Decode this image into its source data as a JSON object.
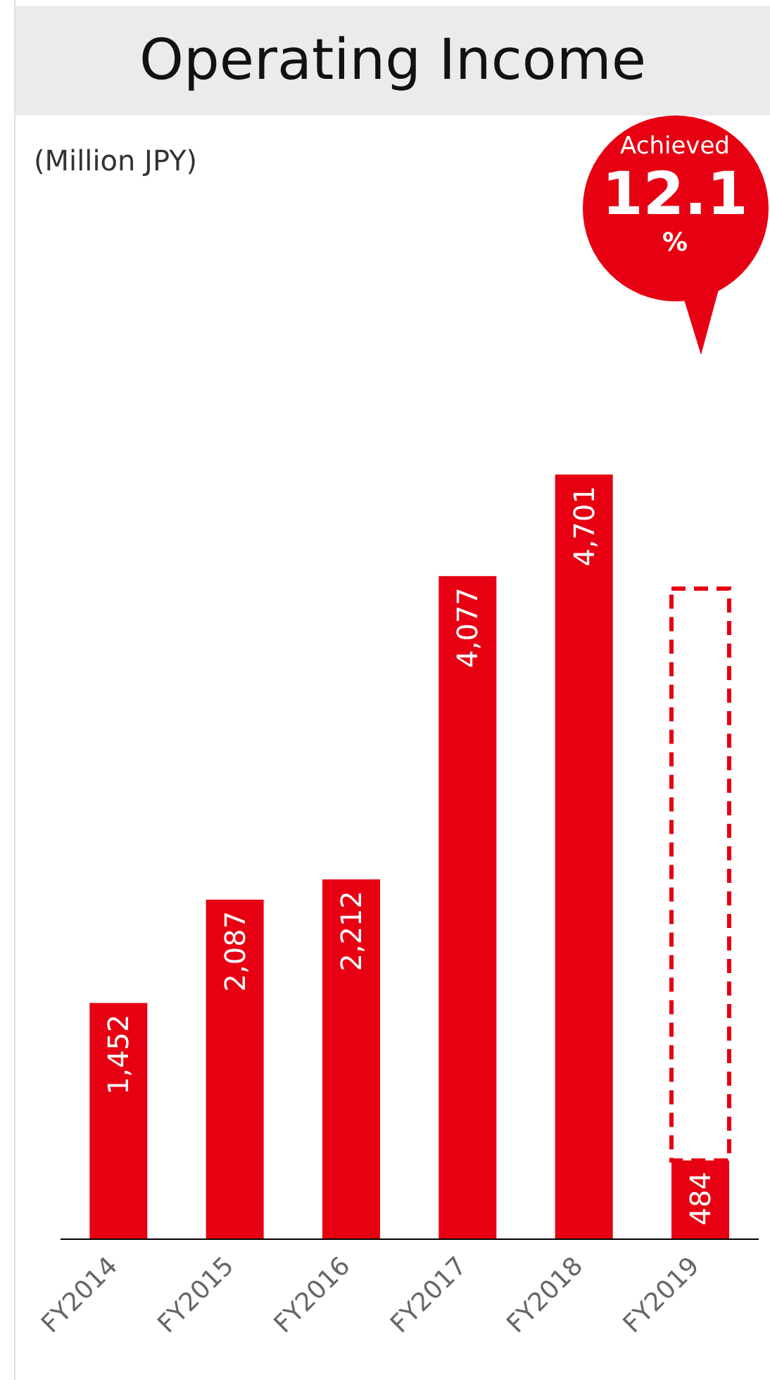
{
  "chart_data": {
    "type": "bar",
    "title": "Operating Income",
    "stacked": true,
    "legend": false,
    "grid": false,
    "categories": [
      "FY2014",
      "FY2015",
      "FY2016",
      "FY2017",
      "FY2018",
      "FY2019"
    ],
    "series": [
      {
        "color": "#e60012",
        "values": [
          1452,
          2087,
          2212,
          4077,
          4701,
          484
        ],
        "value_labels": [
          "1,452",
          "2,087",
          "2,212",
          "4,077",
          "4,701",
          "484"
        ]
      },
      {
        "color": "#e60012",
        "line_style": "dashed",
        "values": [
          null,
          null,
          null,
          null,
          null,
          3516
        ]
      }
    ],
    "annotations": [
      "(Million JPY)",
      "Achieved",
      "12.1",
      "%"
    ]
  }
}
